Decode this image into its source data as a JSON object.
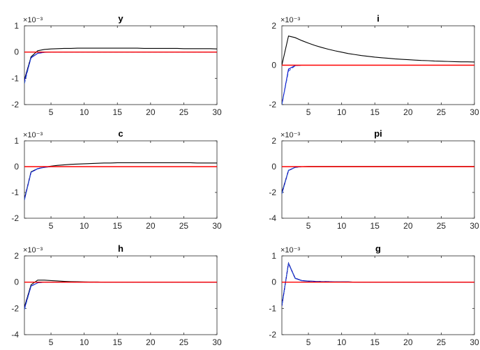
{
  "chart_data": [
    {
      "type": "line",
      "title": "y",
      "exponent_label": "×10⁻³",
      "xlim": [
        1,
        30
      ],
      "ylim": [
        -2,
        1
      ],
      "xticks": [
        "5",
        "10",
        "15",
        "20",
        "25",
        "30"
      ],
      "yticks": [
        "1",
        "0",
        "-1",
        "-2"
      ],
      "x": [
        1,
        2,
        3,
        4,
        5,
        6,
        7,
        8,
        9,
        10,
        11,
        12,
        13,
        14,
        15,
        16,
        17,
        18,
        19,
        20,
        21,
        22,
        23,
        24,
        25,
        26,
        27,
        28,
        29,
        30
      ],
      "series": [
        {
          "color": "#000000",
          "style": "solid",
          "values": [
            -1.05,
            -0.18,
            0.05,
            0.1,
            0.12,
            0.13,
            0.14,
            0.14,
            0.15,
            0.15,
            0.15,
            0.15,
            0.15,
            0.15,
            0.15,
            0.15,
            0.15,
            0.15,
            0.14,
            0.14,
            0.14,
            0.14,
            0.14,
            0.14,
            0.13,
            0.13,
            0.13,
            0.13,
            0.13,
            0.12
          ]
        },
        {
          "color": "#0000cc",
          "style": "solid",
          "values": [
            -1.1,
            -0.22,
            -0.05,
            -0.01,
            0,
            0,
            0,
            0,
            0,
            0,
            0,
            0,
            0,
            0,
            0,
            0,
            0,
            0,
            0,
            0,
            0,
            0,
            0,
            0,
            0,
            0,
            0,
            0,
            0,
            0
          ]
        },
        {
          "color": "#2a55d4",
          "style": "dashed",
          "values": [
            -1.2,
            -0.2,
            -0.04,
            -0.01,
            0,
            0,
            0,
            0,
            0,
            0,
            0,
            0,
            0,
            0,
            0,
            0,
            0,
            0,
            0,
            0,
            0,
            0,
            0,
            0,
            0,
            0,
            0,
            0,
            0,
            0
          ]
        },
        {
          "color": "#ff0000",
          "style": "solid",
          "values": [
            0,
            0,
            0,
            0,
            0,
            0,
            0,
            0,
            0,
            0,
            0,
            0,
            0,
            0,
            0,
            0,
            0,
            0,
            0,
            0,
            0,
            0,
            0,
            0,
            0,
            0,
            0,
            0,
            0,
            0
          ]
        }
      ]
    },
    {
      "type": "line",
      "title": "i",
      "exponent_label": "×10⁻³",
      "xlim": [
        1,
        30
      ],
      "ylim": [
        -2,
        2
      ],
      "xticks": [
        "5",
        "10",
        "15",
        "20",
        "25",
        "30"
      ],
      "yticks": [
        "2",
        "0",
        "-2"
      ],
      "x": [
        1,
        2,
        3,
        4,
        5,
        6,
        7,
        8,
        9,
        10,
        11,
        12,
        13,
        14,
        15,
        16,
        17,
        18,
        19,
        20,
        21,
        22,
        23,
        24,
        25,
        26,
        27,
        28,
        29,
        30
      ],
      "series": [
        {
          "color": "#000000",
          "style": "solid",
          "values": [
            0,
            1.48,
            1.4,
            1.25,
            1.12,
            1.0,
            0.9,
            0.81,
            0.73,
            0.66,
            0.59,
            0.54,
            0.49,
            0.45,
            0.41,
            0.38,
            0.35,
            0.32,
            0.3,
            0.28,
            0.26,
            0.24,
            0.23,
            0.21,
            0.2,
            0.19,
            0.18,
            0.17,
            0.17,
            0.16
          ]
        },
        {
          "color": "#0000cc",
          "style": "solid",
          "values": [
            -2.0,
            -0.2,
            -0.02,
            0,
            0,
            0,
            0,
            0,
            0,
            0,
            0,
            0,
            0,
            0,
            0,
            0,
            0,
            0,
            0,
            0,
            0,
            0,
            0,
            0,
            0,
            0,
            0,
            0,
            0,
            0
          ]
        },
        {
          "color": "#2a55d4",
          "style": "dashed",
          "values": [
            -2.0,
            -0.3,
            -0.03,
            0,
            0,
            0,
            0,
            0,
            0,
            0,
            0,
            0,
            0,
            0,
            0,
            0,
            0,
            0,
            0,
            0,
            0,
            0,
            0,
            0,
            0,
            0,
            0,
            0,
            0,
            0
          ]
        },
        {
          "color": "#ff0000",
          "style": "solid",
          "values": [
            0,
            0,
            0,
            0,
            0,
            0,
            0,
            0,
            0,
            0,
            0,
            0,
            0,
            0,
            0,
            0,
            0,
            0,
            0,
            0,
            0,
            0,
            0,
            0,
            0,
            0,
            0,
            0,
            0,
            0
          ]
        }
      ]
    },
    {
      "type": "line",
      "title": "c",
      "exponent_label": "×10⁻³",
      "xlim": [
        1,
        30
      ],
      "ylim": [
        -2,
        1
      ],
      "xticks": [
        "5",
        "10",
        "15",
        "20",
        "25",
        "30"
      ],
      "yticks": [
        "1",
        "0",
        "-1",
        "-2"
      ],
      "x": [
        1,
        2,
        3,
        4,
        5,
        6,
        7,
        8,
        9,
        10,
        11,
        12,
        13,
        14,
        15,
        16,
        17,
        18,
        19,
        20,
        21,
        22,
        23,
        24,
        25,
        26,
        27,
        28,
        29,
        30
      ],
      "series": [
        {
          "color": "#000000",
          "style": "solid",
          "values": [
            -1.25,
            -0.2,
            -0.08,
            -0.02,
            0.02,
            0.05,
            0.07,
            0.09,
            0.1,
            0.11,
            0.12,
            0.13,
            0.14,
            0.14,
            0.15,
            0.15,
            0.15,
            0.15,
            0.15,
            0.15,
            0.15,
            0.15,
            0.15,
            0.15,
            0.15,
            0.15,
            0.14,
            0.14,
            0.14,
            0.14
          ]
        },
        {
          "color": "#0000cc",
          "style": "solid",
          "values": [
            -1.28,
            -0.22,
            -0.08,
            -0.03,
            0,
            0,
            0,
            0,
            0,
            0,
            0,
            0,
            0,
            0,
            0,
            0,
            0,
            0,
            0,
            0,
            0,
            0,
            0,
            0,
            0,
            0,
            0,
            0,
            0,
            0
          ]
        },
        {
          "color": "#2a55d4",
          "style": "dashed",
          "values": [
            -1.3,
            -0.22,
            -0.07,
            -0.03,
            0,
            0,
            0,
            0,
            0,
            0,
            0,
            0,
            0,
            0,
            0,
            0,
            0,
            0,
            0,
            0,
            0,
            0,
            0,
            0,
            0,
            0,
            0,
            0,
            0,
            0
          ]
        },
        {
          "color": "#ff0000",
          "style": "solid",
          "values": [
            0,
            0,
            0,
            0,
            0,
            0,
            0,
            0,
            0,
            0,
            0,
            0,
            0,
            0,
            0,
            0,
            0,
            0,
            0,
            0,
            0,
            0,
            0,
            0,
            0,
            0,
            0,
            0,
            0,
            0
          ]
        }
      ]
    },
    {
      "type": "line",
      "title": "pi",
      "exponent_label": "×10⁻³",
      "xlim": [
        1,
        30
      ],
      "ylim": [
        -4,
        2
      ],
      "xticks": [
        "5",
        "10",
        "15",
        "20",
        "25",
        "30"
      ],
      "yticks": [
        "2",
        "0",
        "-2",
        "-4"
      ],
      "x": [
        1,
        2,
        3,
        4,
        5,
        6,
        7,
        8,
        9,
        10,
        11,
        12,
        13,
        14,
        15,
        16,
        17,
        18,
        19,
        20,
        21,
        22,
        23,
        24,
        25,
        26,
        27,
        28,
        29,
        30
      ],
      "series": [
        {
          "color": "#000000",
          "style": "solid",
          "values": [
            -2.0,
            -0.3,
            -0.05,
            0,
            0.02,
            0.02,
            0.02,
            0.02,
            0.02,
            0.02,
            0.02,
            0.02,
            0.02,
            0.02,
            0.02,
            0.02,
            0.02,
            0.02,
            0.02,
            0.02,
            0.02,
            0.02,
            0.02,
            0.02,
            0.02,
            0.02,
            0.02,
            0.02,
            0.02,
            0.02
          ]
        },
        {
          "color": "#0000cc",
          "style": "solid",
          "values": [
            -2.1,
            -0.3,
            -0.06,
            0,
            0,
            0,
            0,
            0,
            0,
            0,
            0,
            0,
            0,
            0,
            0,
            0,
            0,
            0,
            0,
            0,
            0,
            0,
            0,
            0,
            0,
            0,
            0,
            0,
            0,
            0
          ]
        },
        {
          "color": "#2a55d4",
          "style": "dashed",
          "values": [
            -2.1,
            -0.28,
            -0.05,
            0,
            0,
            0,
            0,
            0,
            0,
            0,
            0,
            0,
            0,
            0,
            0,
            0,
            0,
            0,
            0,
            0,
            0,
            0,
            0,
            0,
            0,
            0,
            0,
            0,
            0,
            0
          ]
        },
        {
          "color": "#ff0000",
          "style": "solid",
          "values": [
            0,
            0,
            0,
            0,
            0,
            0,
            0,
            0,
            0,
            0,
            0,
            0,
            0,
            0,
            0,
            0,
            0,
            0,
            0,
            0,
            0,
            0,
            0,
            0,
            0,
            0,
            0,
            0,
            0,
            0
          ]
        }
      ]
    },
    {
      "type": "line",
      "title": "h",
      "exponent_label": "×10⁻³",
      "xlim": [
        1,
        30
      ],
      "ylim": [
        -4,
        2
      ],
      "xticks": [
        "5",
        "10",
        "15",
        "20",
        "25",
        "30"
      ],
      "yticks": [
        "2",
        "0",
        "-2",
        "-4"
      ],
      "x": [
        1,
        2,
        3,
        4,
        5,
        6,
        7,
        8,
        9,
        10,
        11,
        12,
        13,
        14,
        15,
        16,
        17,
        18,
        19,
        20,
        21,
        22,
        23,
        24,
        25,
        26,
        27,
        28,
        29,
        30
      ],
      "series": [
        {
          "color": "#000000",
          "style": "solid",
          "values": [
            -1.9,
            -0.2,
            0.15,
            0.15,
            0.12,
            0.09,
            0.06,
            0.04,
            0.03,
            0.02,
            0.01,
            0.01,
            0,
            0,
            0,
            0,
            0,
            0,
            0,
            0,
            0,
            0,
            0,
            0,
            0,
            0,
            0,
            0,
            0,
            0
          ]
        },
        {
          "color": "#0000cc",
          "style": "solid",
          "values": [
            -2.0,
            -0.3,
            -0.05,
            0,
            0,
            0,
            0,
            0,
            0,
            0,
            0,
            0,
            0,
            0,
            0,
            0,
            0,
            0,
            0,
            0,
            0,
            0,
            0,
            0,
            0,
            0,
            0,
            0,
            0,
            0
          ]
        },
        {
          "color": "#2a55d4",
          "style": "dashed",
          "values": [
            -2.1,
            -0.3,
            -0.05,
            0,
            0,
            0,
            0,
            0,
            0,
            0,
            0,
            0,
            0,
            0,
            0,
            0,
            0,
            0,
            0,
            0,
            0,
            0,
            0,
            0,
            0,
            0,
            0,
            0,
            0,
            0
          ]
        },
        {
          "color": "#ff0000",
          "style": "solid",
          "values": [
            0,
            0,
            0,
            0,
            0,
            0,
            0,
            0,
            0,
            0,
            0,
            0,
            0,
            0,
            0,
            0,
            0,
            0,
            0,
            0,
            0,
            0,
            0,
            0,
            0,
            0,
            0,
            0,
            0,
            0
          ]
        }
      ]
    },
    {
      "type": "line",
      "title": "g",
      "exponent_label": "×10⁻³",
      "xlim": [
        1,
        30
      ],
      "ylim": [
        -2,
        1
      ],
      "xticks": [
        "5",
        "10",
        "15",
        "20",
        "25",
        "30"
      ],
      "yticks": [
        "1",
        "0",
        "-1",
        "-2"
      ],
      "x": [
        1,
        2,
        3,
        4,
        5,
        6,
        7,
        8,
        9,
        10,
        11,
        12,
        13,
        14,
        15,
        16,
        17,
        18,
        19,
        20,
        21,
        22,
        23,
        24,
        25,
        26,
        27,
        28,
        29,
        30
      ],
      "series": [
        {
          "color": "#000000",
          "style": "solid",
          "values": [
            -0.9,
            0.72,
            0.15,
            0.06,
            0.04,
            0.03,
            0.02,
            0.02,
            0.01,
            0.01,
            0.01,
            0,
            0,
            0,
            0,
            0,
            0,
            0,
            0,
            0,
            0,
            0,
            0,
            0,
            0,
            0,
            0,
            0,
            0,
            0
          ]
        },
        {
          "color": "#0000cc",
          "style": "solid",
          "values": [
            -0.9,
            0.72,
            0.15,
            0.06,
            0.04,
            0.03,
            0.02,
            0.02,
            0.01,
            0.01,
            0.01,
            0,
            0,
            0,
            0,
            0,
            0,
            0,
            0,
            0,
            0,
            0,
            0,
            0,
            0,
            0,
            0,
            0,
            0,
            0
          ]
        },
        {
          "color": "#2a55d4",
          "style": "dashed",
          "values": [
            -0.85,
            0.7,
            0.14,
            0.05,
            0.03,
            0.02,
            0.02,
            0.01,
            0.01,
            0.01,
            0,
            0,
            0,
            0,
            0,
            0,
            0,
            0,
            0,
            0,
            0,
            0,
            0,
            0,
            0,
            0,
            0,
            0,
            0,
            0
          ]
        },
        {
          "color": "#ff0000",
          "style": "solid",
          "values": [
            0,
            0,
            0,
            0,
            0,
            0,
            0,
            0,
            0,
            0,
            0,
            0,
            0,
            0,
            0,
            0,
            0,
            0,
            0,
            0,
            0,
            0,
            0,
            0,
            0,
            0,
            0,
            0,
            0,
            0
          ]
        }
      ]
    }
  ]
}
